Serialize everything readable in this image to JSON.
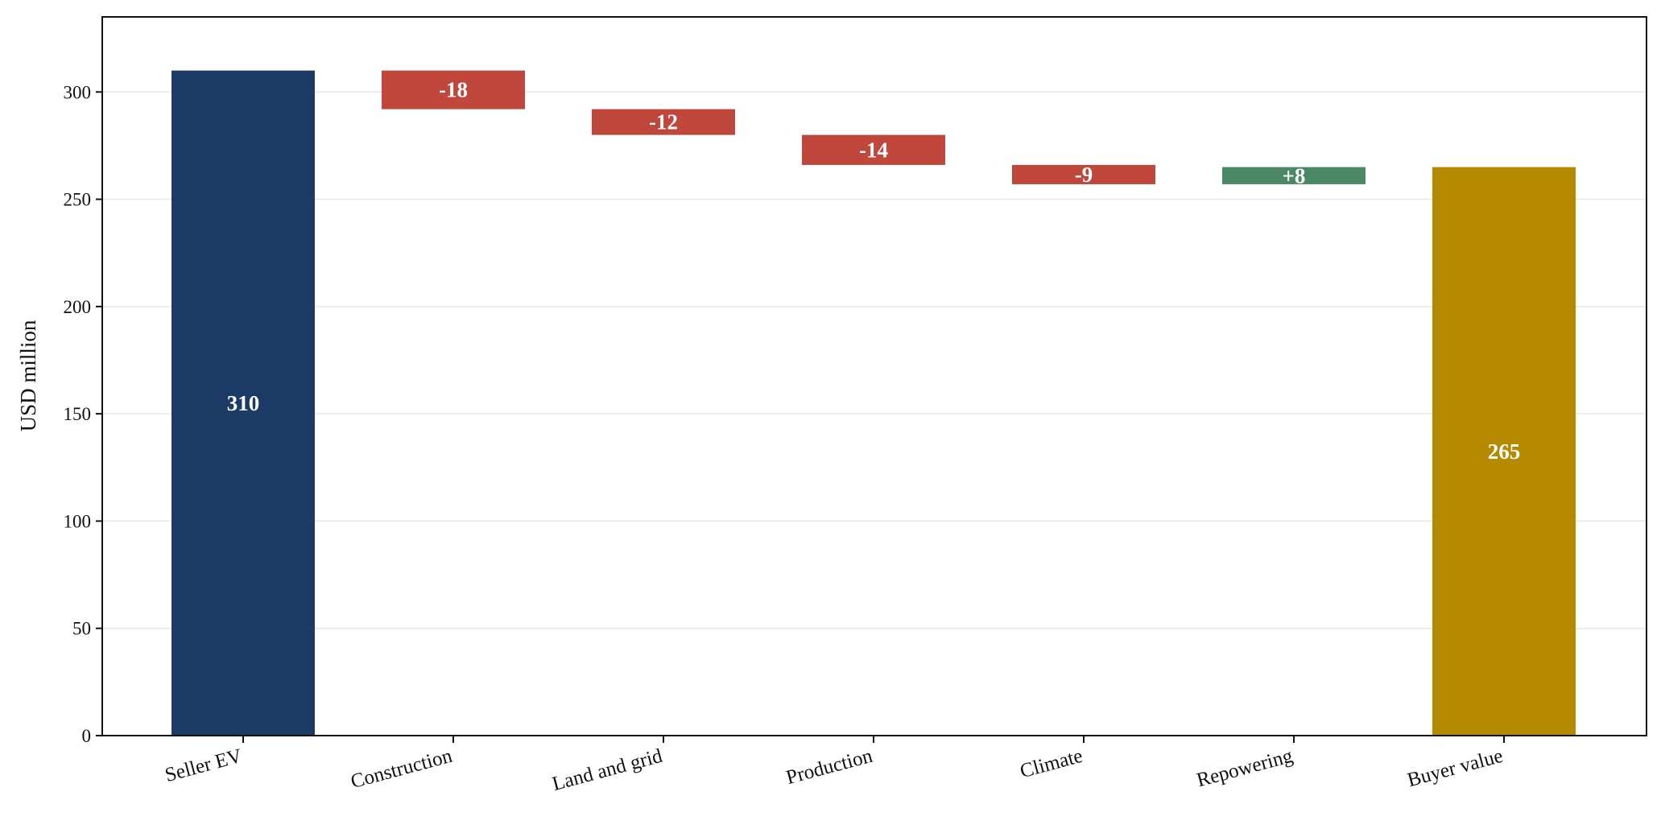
{
  "chart_data": {
    "type": "bar",
    "subtype": "waterfall",
    "title": "",
    "xlabel": "",
    "ylabel": "USD million",
    "ylim": [
      0,
      335
    ],
    "yticks": [
      0,
      50,
      100,
      150,
      200,
      250,
      300
    ],
    "grid": "horizontal",
    "legend": "none",
    "categories": [
      "Seller EV",
      "Construction",
      "Land and grid",
      "Production",
      "Climate",
      "Repowering",
      "Buyer value"
    ],
    "bars": [
      {
        "category": "Seller EV",
        "kind": "total",
        "start": 0,
        "end": 310,
        "value": 310,
        "label": "310",
        "color": "#1b3a66"
      },
      {
        "category": "Construction",
        "kind": "decrease",
        "start": 310,
        "end": 292,
        "value": -18,
        "label": "-18",
        "color": "#c0473b"
      },
      {
        "category": "Land and grid",
        "kind": "decrease",
        "start": 292,
        "end": 280,
        "value": -12,
        "label": "-12",
        "color": "#c0473b"
      },
      {
        "category": "Production",
        "kind": "decrease",
        "start": 280,
        "end": 266,
        "value": -14,
        "label": "-14",
        "color": "#c0473b"
      },
      {
        "category": "Climate",
        "kind": "decrease",
        "start": 266,
        "end": 257,
        "value": -9,
        "label": "-9",
        "color": "#c0473b"
      },
      {
        "category": "Repowering",
        "kind": "increase",
        "start": 257,
        "end": 265,
        "value": 8,
        "label": "+8",
        "color": "#4a8866"
      },
      {
        "category": "Buyer value",
        "kind": "total",
        "start": 0,
        "end": 265,
        "value": 265,
        "label": "265",
        "color": "#b58a00"
      }
    ],
    "colors": {
      "total_start": "#1b3a66",
      "decrease": "#c0473b",
      "increase": "#4a8866",
      "total_end": "#b58a00",
      "grid": "#e6e6e6",
      "axis": "#111111"
    }
  }
}
